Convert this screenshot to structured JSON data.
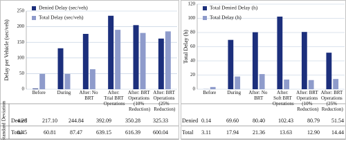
{
  "chart_data": [
    {
      "type": "bar",
      "ylabel": "Delay per Vehicle (sec/veh)",
      "categories": [
        "Before",
        "During",
        "After: No BRT",
        "After: Trial BRT Operations",
        "After: BRT Operations (10% Reduction)",
        "After: BRT Operations (25% Reduction)"
      ],
      "series": [
        {
          "name": "Denied Delay (sec/veh)",
          "color": "#1c2f7c",
          "values": [
            2,
            131,
            177,
            235,
            205,
            162
          ]
        },
        {
          "name": "Total Delay (sec/veh)",
          "color": "#8e9bcb",
          "values": [
            49,
            49,
            64,
            190,
            180,
            185
          ]
        }
      ],
      "ylim": [
        0,
        250
      ],
      "yticks": [
        0,
        50,
        100,
        150,
        200,
        250
      ],
      "grid": true,
      "legend": "top-left"
    },
    {
      "type": "bar",
      "ylabel": "Total Delay (h)",
      "categories": [
        "Before",
        "During",
        "After: No BRT",
        "After: Soft BRT Operations",
        "After: BRT Operations (10% Reduction)",
        "After: BRT Operations (25% Reduction)"
      ],
      "series": [
        {
          "name": "Total Denied Delay (h)",
          "color": "#1c2f7c",
          "values": [
            0.14,
            69.6,
            80.4,
            102.43,
            80.79,
            51.54
          ]
        },
        {
          "name": "Total Delay (h)",
          "color": "#8e9bcb",
          "values": [
            3.11,
            17.94,
            21.36,
            13.63,
            12.9,
            14.44
          ]
        }
      ],
      "ylim": [
        0,
        120
      ],
      "yticks": [
        0,
        20,
        40,
        60,
        80,
        100,
        120
      ],
      "grid": true,
      "legend": "top-left"
    }
  ],
  "table": {
    "row_header": "Standard Deviation",
    "left": [
      {
        "label": "Denied",
        "cells": [
          "4.28",
          "217.10",
          "244.84",
          "392.09",
          "350.28",
          "325.33"
        ]
      },
      {
        "label": "Total",
        "cells": [
          "8.45",
          "60.81",
          "87.47",
          "639.15",
          "616.39",
          "600.04"
        ]
      }
    ],
    "right": [
      {
        "label": "Denied",
        "cells": [
          "0.14",
          "69.60",
          "80.40",
          "102.43",
          "80.79",
          "51.54"
        ]
      },
      {
        "label": "Total",
        "cells": [
          "3.11",
          "17.94",
          "21.36",
          "13.63",
          "12.90",
          "14.44"
        ]
      }
    ]
  }
}
